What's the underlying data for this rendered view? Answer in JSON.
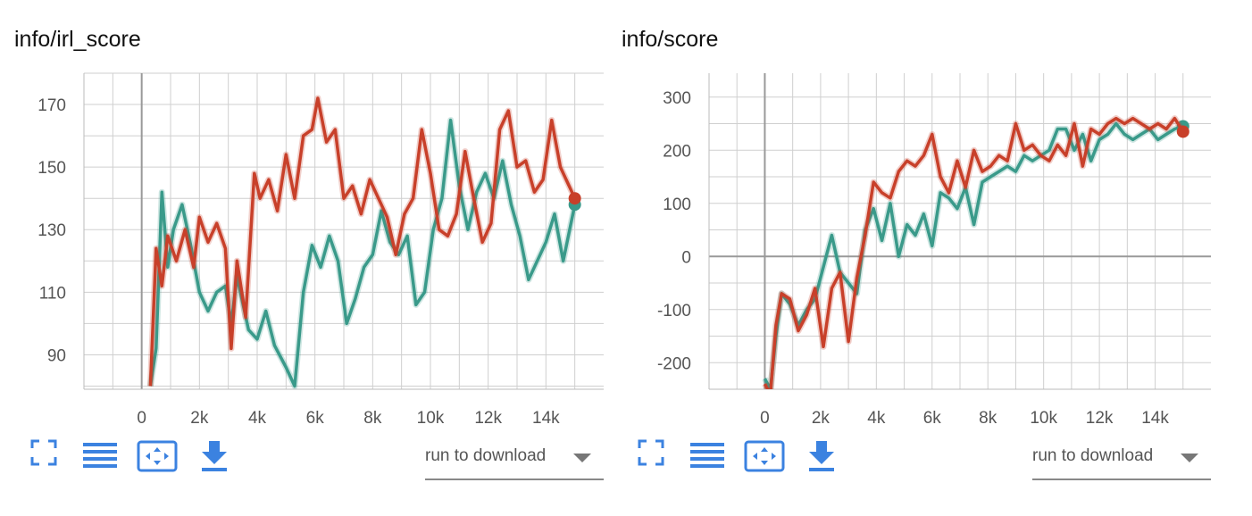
{
  "toolbar": {
    "fit_icon": "fullscreen-icon",
    "data_icon": "list-icon",
    "zoom_icon": "fit-domain-icon",
    "download_icon": "download-icon",
    "run_select": "run to download"
  },
  "colors": {
    "teal": "#3a9a8a",
    "red": "#c8402a",
    "grid": "#cfcfcf",
    "axis": "#999999"
  },
  "chart_data": [
    {
      "type": "line",
      "title": "info/irl_score",
      "xlim": [
        -2000,
        16000
      ],
      "ylim": [
        79,
        180
      ],
      "xticks": [
        0,
        2000,
        4000,
        6000,
        8000,
        10000,
        12000,
        14000
      ],
      "xtick_labels": [
        "0",
        "2k",
        "4k",
        "6k",
        "8k",
        "10k",
        "12k",
        "14k"
      ],
      "yticks": [
        90,
        110,
        130,
        150,
        170
      ],
      "ytick_labels": [
        "90",
        "110",
        "130",
        "150",
        "170"
      ],
      "grid": true,
      "series": [
        {
          "color": "teal",
          "x": [
            300,
            500,
            700,
            900,
            1100,
            1400,
            1700,
            2000,
            2300,
            2600,
            2900,
            3100,
            3300,
            3700,
            4000,
            4300,
            4600,
            5000,
            5300,
            5600,
            5900,
            6200,
            6500,
            6800,
            7100,
            7400,
            7700,
            8000,
            8300,
            8600,
            8900,
            9200,
            9500,
            9800,
            10100,
            10400,
            10700,
            11000,
            11300,
            11600,
            11900,
            12200,
            12500,
            12800,
            13100,
            13400,
            13700,
            14000,
            14300,
            14600,
            15000
          ],
          "y": [
            80,
            92,
            142,
            118,
            130,
            138,
            125,
            110,
            104,
            110,
            112,
            100,
            115,
            98,
            95,
            104,
            93,
            86,
            80,
            110,
            125,
            118,
            128,
            120,
            100,
            108,
            118,
            122,
            136,
            126,
            122,
            128,
            106,
            110,
            130,
            140,
            165,
            144,
            130,
            142,
            148,
            140,
            152,
            138,
            128,
            114,
            120,
            126,
            135,
            120,
            138
          ]
        },
        {
          "color": "red",
          "x": [
            300,
            500,
            700,
            900,
            1200,
            1500,
            1800,
            2000,
            2300,
            2600,
            2900,
            3100,
            3300,
            3600,
            3900,
            4100,
            4400,
            4700,
            5000,
            5300,
            5600,
            5900,
            6100,
            6400,
            6700,
            7000,
            7300,
            7600,
            7900,
            8200,
            8500,
            8800,
            9100,
            9400,
            9700,
            10000,
            10300,
            10600,
            10900,
            11200,
            11500,
            11800,
            12100,
            12400,
            12700,
            13000,
            13300,
            13600,
            13900,
            14200,
            14500,
            15000
          ],
          "y": [
            80,
            124,
            112,
            128,
            120,
            130,
            118,
            134,
            126,
            132,
            124,
            92,
            120,
            102,
            148,
            140,
            146,
            136,
            154,
            140,
            160,
            162,
            172,
            158,
            162,
            140,
            144,
            135,
            146,
            140,
            134,
            122,
            135,
            140,
            162,
            148,
            130,
            128,
            135,
            155,
            140,
            126,
            132,
            162,
            168,
            150,
            152,
            142,
            146,
            165,
            150,
            140
          ]
        }
      ]
    },
    {
      "type": "line",
      "title": "info/score",
      "xlim": [
        -2000,
        16000
      ],
      "ylim": [
        -250,
        345
      ],
      "xticks": [
        0,
        2000,
        4000,
        6000,
        8000,
        10000,
        12000,
        14000
      ],
      "xtick_labels": [
        "0",
        "2k",
        "4k",
        "6k",
        "8k",
        "10k",
        "12k",
        "14k"
      ],
      "yticks": [
        -200,
        -100,
        0,
        100,
        200,
        300
      ],
      "ytick_labels": [
        "-200",
        "-100",
        "0",
        "100",
        "200",
        "300"
      ],
      "grid": true,
      "series": [
        {
          "color": "teal",
          "x": [
            0,
            200,
            400,
            600,
            900,
            1200,
            1500,
            1800,
            2100,
            2400,
            2700,
            3000,
            3300,
            3600,
            3900,
            4200,
            4500,
            4800,
            5100,
            5400,
            5700,
            6000,
            6300,
            6600,
            6900,
            7200,
            7500,
            7800,
            8100,
            8400,
            8700,
            9000,
            9300,
            9600,
            9900,
            10200,
            10500,
            10800,
            11100,
            11400,
            11700,
            12000,
            12300,
            12600,
            12900,
            13200,
            13500,
            13800,
            14100,
            14400,
            14700,
            15000
          ],
          "y": [
            -230,
            -250,
            -150,
            -70,
            -90,
            -130,
            -100,
            -80,
            -20,
            40,
            -30,
            -50,
            -70,
            50,
            90,
            30,
            100,
            0,
            60,
            40,
            80,
            20,
            120,
            110,
            90,
            130,
            60,
            140,
            150,
            160,
            170,
            160,
            190,
            180,
            190,
            200,
            240,
            240,
            200,
            230,
            180,
            220,
            230,
            250,
            230,
            220,
            230,
            240,
            220,
            230,
            240,
            245
          ]
        },
        {
          "color": "red",
          "x": [
            0,
            200,
            400,
            600,
            900,
            1200,
            1500,
            1800,
            2100,
            2400,
            2700,
            3000,
            3300,
            3600,
            3900,
            4200,
            4500,
            4800,
            5100,
            5400,
            5700,
            6000,
            6300,
            6600,
            6900,
            7200,
            7500,
            7800,
            8100,
            8400,
            8700,
            9000,
            9300,
            9600,
            9900,
            10200,
            10500,
            10800,
            11100,
            11400,
            11700,
            12000,
            12300,
            12600,
            12900,
            13200,
            13500,
            13800,
            14100,
            14400,
            14700,
            15000
          ],
          "y": [
            -240,
            -260,
            -130,
            -70,
            -80,
            -140,
            -110,
            -60,
            -170,
            -60,
            -30,
            -160,
            -40,
            40,
            140,
            120,
            110,
            160,
            180,
            170,
            190,
            230,
            150,
            120,
            180,
            130,
            200,
            160,
            170,
            190,
            180,
            250,
            200,
            210,
            190,
            180,
            210,
            190,
            250,
            170,
            240,
            230,
            250,
            260,
            250,
            260,
            250,
            240,
            250,
            240,
            260,
            235
          ]
        }
      ]
    }
  ]
}
